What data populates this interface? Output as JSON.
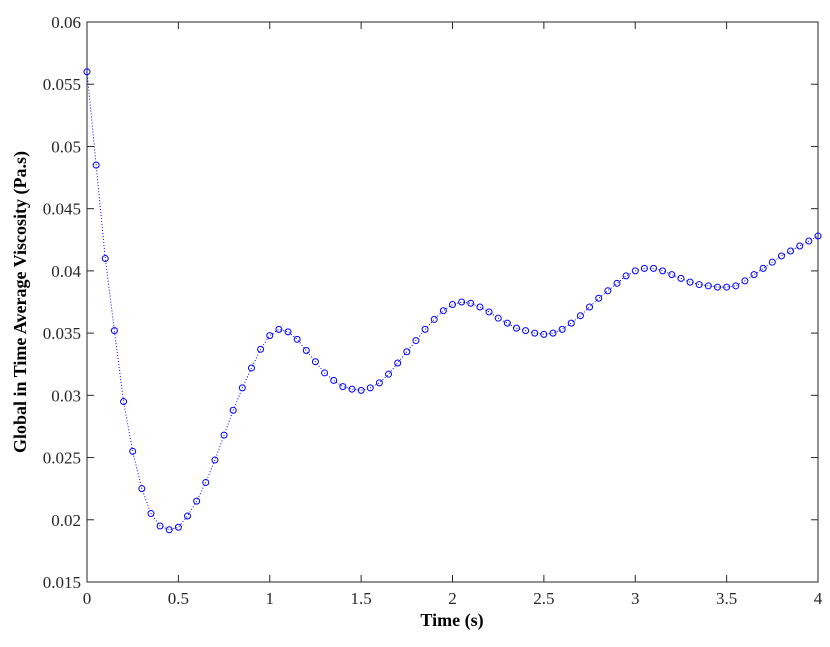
{
  "chart_data": {
    "type": "line",
    "xlabel": "Time (s)",
    "ylabel": "Global in Time Average Viscosity (Pa.s)",
    "x": [
      0,
      0.05,
      0.1,
      0.15,
      0.2,
      0.25,
      0.3,
      0.35,
      0.4,
      0.45,
      0.5,
      0.55,
      0.6,
      0.65,
      0.7,
      0.75,
      0.8,
      0.85,
      0.9,
      0.95,
      1,
      1.05,
      1.1,
      1.15,
      1.2,
      1.25,
      1.3,
      1.35,
      1.4,
      1.45,
      1.5,
      1.55,
      1.6,
      1.65,
      1.7,
      1.75,
      1.8,
      1.85,
      1.9,
      1.95,
      2,
      2.05,
      2.1,
      2.15,
      2.2,
      2.25,
      2.3,
      2.35,
      2.4,
      2.45,
      2.5,
      2.55,
      2.6,
      2.65,
      2.7,
      2.75,
      2.8,
      2.85,
      2.9,
      2.95,
      3,
      3.05,
      3.1,
      3.15,
      3.2,
      3.25,
      3.3,
      3.35,
      3.4,
      3.45,
      3.5,
      3.55,
      3.6,
      3.65,
      3.7,
      3.75,
      3.8,
      3.85,
      3.9,
      3.95,
      4
    ],
    "series": [
      {
        "color": "#0000ff",
        "values": [
          0.056,
          0.0485,
          0.041,
          0.0352,
          0.0295,
          0.0255,
          0.0225,
          0.0205,
          0.0195,
          0.0192,
          0.0194,
          0.0203,
          0.0215,
          0.023,
          0.0248,
          0.0268,
          0.0288,
          0.0306,
          0.0322,
          0.0337,
          0.0348,
          0.0353,
          0.0351,
          0.0345,
          0.0336,
          0.0327,
          0.0318,
          0.0312,
          0.0307,
          0.0305,
          0.0304,
          0.0306,
          0.031,
          0.0317,
          0.0326,
          0.0335,
          0.0344,
          0.0353,
          0.0361,
          0.0368,
          0.0373,
          0.0375,
          0.0374,
          0.0371,
          0.0367,
          0.0362,
          0.0358,
          0.0354,
          0.0352,
          0.035,
          0.0349,
          0.035,
          0.0353,
          0.0358,
          0.0364,
          0.0371,
          0.0378,
          0.0384,
          0.039,
          0.0396,
          0.04,
          0.0402,
          0.0402,
          0.04,
          0.0397,
          0.0394,
          0.0391,
          0.0389,
          0.0388,
          0.0387,
          0.0387,
          0.0388,
          0.0392,
          0.0397,
          0.0402,
          0.0407,
          0.0412,
          0.0416,
          0.042,
          0.0424,
          0.0428
        ]
      }
    ],
    "xlim": [
      0,
      4
    ],
    "xticks": [
      0,
      0.5,
      1,
      1.5,
      2,
      2.5,
      3,
      3.5,
      4
    ],
    "ylim": [
      0.015,
      0.06
    ],
    "yticks": [
      0.015,
      0.02,
      0.025,
      0.03,
      0.035,
      0.04,
      0.045,
      0.05,
      0.055,
      0.06
    ]
  }
}
